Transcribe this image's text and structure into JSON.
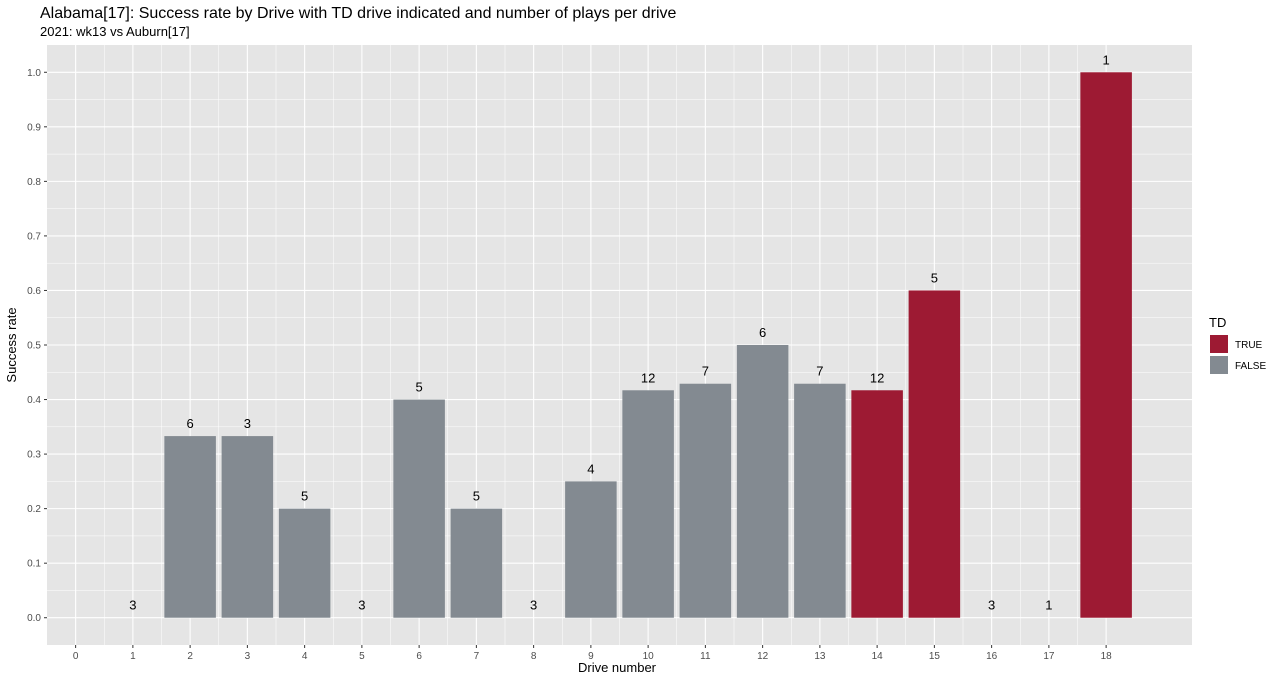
{
  "chart_data": {
    "type": "bar",
    "title": "Alabama[17]: Success rate by Drive with TD drive indicated and number of plays per drive",
    "subtitle": "2021: wk13 vs Auburn[17]",
    "xlabel": "Drive number",
    "ylabel": "Success rate",
    "x_ticks": [
      0,
      1,
      2,
      3,
      4,
      5,
      6,
      7,
      8,
      9,
      10,
      11,
      12,
      13,
      14,
      15,
      16,
      17,
      18
    ],
    "xlim": [
      -0.5,
      19.5
    ],
    "y_ticks": [
      0.0,
      0.1,
      0.2,
      0.3,
      0.4,
      0.5,
      0.6,
      0.7,
      0.8,
      0.9,
      1.0
    ],
    "y_tick_labels": [
      "0.0",
      "0.1",
      "0.2",
      "0.3",
      "0.4",
      "0.5",
      "0.6",
      "0.7",
      "0.8",
      "0.9",
      "1.0"
    ],
    "ylim": [
      -0.05,
      1.05
    ],
    "grid": true,
    "legend": {
      "title": "TD",
      "position": "right",
      "entries": [
        {
          "label": "TRUE",
          "color": "#9d1a33"
        },
        {
          "label": "FALSE",
          "color": "#838a91"
        }
      ]
    },
    "bars": [
      {
        "drive": 1,
        "success_rate": 0.0,
        "plays": "3",
        "td": false
      },
      {
        "drive": 2,
        "success_rate": 0.333,
        "plays": "6",
        "td": false
      },
      {
        "drive": 3,
        "success_rate": 0.333,
        "plays": "3",
        "td": false
      },
      {
        "drive": 4,
        "success_rate": 0.2,
        "plays": "5",
        "td": false
      },
      {
        "drive": 5,
        "success_rate": 0.0,
        "plays": "3",
        "td": false
      },
      {
        "drive": 6,
        "success_rate": 0.4,
        "plays": "5",
        "td": false
      },
      {
        "drive": 7,
        "success_rate": 0.2,
        "plays": "5",
        "td": false
      },
      {
        "drive": 8,
        "success_rate": 0.0,
        "plays": "3",
        "td": false
      },
      {
        "drive": 9,
        "success_rate": 0.25,
        "plays": "4",
        "td": false
      },
      {
        "drive": 10,
        "success_rate": 0.417,
        "plays": "12",
        "td": false
      },
      {
        "drive": 11,
        "success_rate": 0.429,
        "plays": "7",
        "td": false
      },
      {
        "drive": 12,
        "success_rate": 0.5,
        "plays": "6",
        "td": false
      },
      {
        "drive": 13,
        "success_rate": 0.429,
        "plays": "7",
        "td": false
      },
      {
        "drive": 14,
        "success_rate": 0.417,
        "plays": "12",
        "td": true
      },
      {
        "drive": 15,
        "success_rate": 0.6,
        "plays": "5",
        "td": true
      },
      {
        "drive": 16,
        "success_rate": 0.0,
        "plays": "3",
        "td": false
      },
      {
        "drive": 17,
        "success_rate": 0.0,
        "plays": "1",
        "td": false
      },
      {
        "drive": 18,
        "success_rate": 1.0,
        "plays": "1",
        "td": true
      }
    ],
    "colors": {
      "panel": "#e5e5e5",
      "grid": "#ffffff",
      "td_true": "#9d1a33",
      "td_false": "#838a91"
    }
  }
}
